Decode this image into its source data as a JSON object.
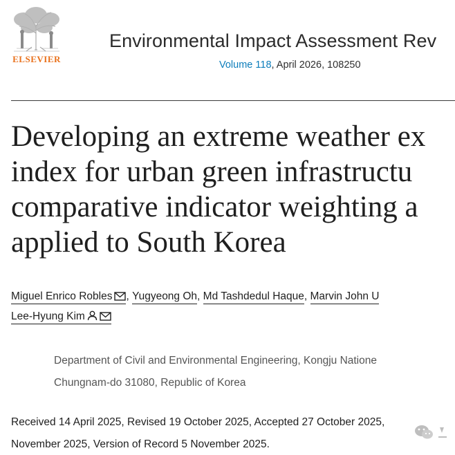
{
  "header": {
    "publisher_logo_text": "ELSEVIER",
    "journal_title": "Environmental Impact Assessment Rev",
    "volume_link": "Volume 118",
    "issue_rest": ", April 2026, 108250"
  },
  "article": {
    "title_lines": [
      "Developing an extreme weather ex",
      "index for urban green infrastructu",
      "comparative indicator weighting a",
      "applied to South Korea"
    ]
  },
  "authors": {
    "row1": [
      "Miguel Enrico Robles",
      "Yugyeong Oh",
      "Md Tashdedul Haque",
      "Marvin John U"
    ],
    "row2": [
      "Lee-Hyung Kim"
    ],
    "separator": ", "
  },
  "affiliation": {
    "lines": [
      "Department of Civil and Environmental Engineering, Kongju Natione",
      "Chungnam-do 31080, Republic of Korea"
    ]
  },
  "dates": {
    "lines": [
      "Received 14 April 2025, Revised 19 October 2025, Accepted 27 October 2025,",
      "November 2025, Version of Record 5 November 2025."
    ]
  },
  "icons": {
    "email": "mail-icon",
    "person": "person-icon",
    "watermark": "wechat-icon"
  },
  "colors": {
    "link": "#0c7dbb",
    "logo": "#e9711c",
    "text": "#1f1f1f",
    "muted": "#555555"
  }
}
